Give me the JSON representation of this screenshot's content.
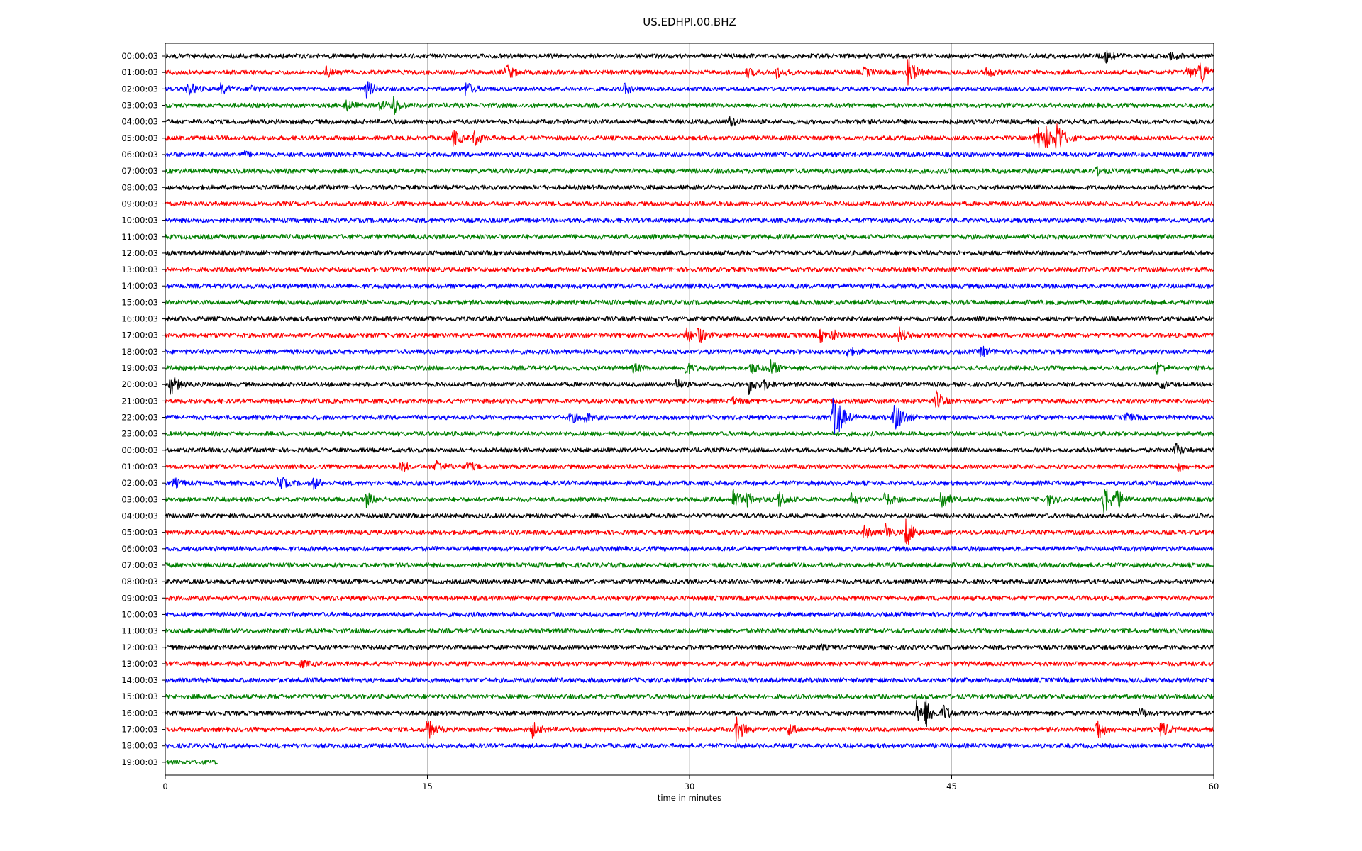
{
  "chart_data": {
    "type": "line",
    "title": "US.EDHPI.00.BHZ",
    "xlabel": "time in minutes",
    "ylabel": "",
    "xlim": [
      0,
      60
    ],
    "x_ticks": [
      0,
      15,
      30,
      45,
      60
    ],
    "x_tick_labels": [
      "0",
      "15",
      "30",
      "45",
      "60"
    ],
    "grid": "vertical lines at x ticks",
    "color_cycle": [
      "#000000",
      "#ff0000",
      "#0000ff",
      "#008000"
    ],
    "series": [
      {
        "label": "00:00:03",
        "end_minute": 60,
        "events": [
          {
            "t": 53.8,
            "a": 0.6
          },
          {
            "t": 57.5,
            "a": 0.3
          }
        ]
      },
      {
        "label": "01:00:03",
        "end_minute": 60,
        "events": [
          {
            "t": 9.2,
            "a": 0.5
          },
          {
            "t": 19.5,
            "a": 0.8
          },
          {
            "t": 33.3,
            "a": 0.4
          },
          {
            "t": 35,
            "a": 0.5
          },
          {
            "t": 40,
            "a": 0.4
          },
          {
            "t": 42.5,
            "a": 1.6
          },
          {
            "t": 47,
            "a": 0.4
          },
          {
            "t": 58.5,
            "a": 0.6
          },
          {
            "t": 59.2,
            "a": 1.4
          }
        ]
      },
      {
        "label": "02:00:03",
        "end_minute": 60,
        "events": [
          {
            "t": 1.3,
            "a": 0.7
          },
          {
            "t": 3.2,
            "a": 0.5
          },
          {
            "t": 4.9,
            "a": 0.3
          },
          {
            "t": 11.5,
            "a": 0.8
          },
          {
            "t": 17.2,
            "a": 0.7
          },
          {
            "t": 26.3,
            "a": 0.4
          }
        ]
      },
      {
        "label": "03:00:03",
        "end_minute": 60,
        "events": [
          {
            "t": 10.3,
            "a": 0.5
          },
          {
            "t": 12.3,
            "a": 0.4
          },
          {
            "t": 13,
            "a": 1.1
          }
        ]
      },
      {
        "label": "04:00:03",
        "end_minute": 60,
        "events": [
          {
            "t": 32.3,
            "a": 0.4
          }
        ]
      },
      {
        "label": "05:00:03",
        "end_minute": 60,
        "events": [
          {
            "t": 16.5,
            "a": 0.8
          },
          {
            "t": 17.7,
            "a": 0.7
          },
          {
            "t": 49.8,
            "a": 1.5
          },
          {
            "t": 50.4,
            "a": 1.1
          },
          {
            "t": 51,
            "a": 2.0
          }
        ]
      },
      {
        "label": "06:00:03",
        "end_minute": 60,
        "events": [
          {
            "t": 4.5,
            "a": 0.2
          }
        ]
      },
      {
        "label": "07:00:03",
        "end_minute": 60,
        "events": [
          {
            "t": 53.3,
            "a": 0.3
          }
        ]
      },
      {
        "label": "08:00:03",
        "end_minute": 60,
        "events": []
      },
      {
        "label": "09:00:03",
        "end_minute": 60,
        "events": []
      },
      {
        "label": "10:00:03",
        "end_minute": 60,
        "events": []
      },
      {
        "label": "11:00:03",
        "end_minute": 60,
        "events": []
      },
      {
        "label": "12:00:03",
        "end_minute": 60,
        "events": []
      },
      {
        "label": "13:00:03",
        "end_minute": 60,
        "events": []
      },
      {
        "label": "14:00:03",
        "end_minute": 60,
        "events": []
      },
      {
        "label": "15:00:03",
        "end_minute": 60,
        "events": []
      },
      {
        "label": "16:00:03",
        "end_minute": 60,
        "events": []
      },
      {
        "label": "17:00:03",
        "end_minute": 60,
        "events": [
          {
            "t": 29.8,
            "a": 0.7
          },
          {
            "t": 30.5,
            "a": 0.8
          },
          {
            "t": 37.5,
            "a": 0.6
          },
          {
            "t": 38.2,
            "a": 0.5
          },
          {
            "t": 42,
            "a": 0.7
          }
        ]
      },
      {
        "label": "18:00:03",
        "end_minute": 60,
        "events": [
          {
            "t": 39,
            "a": 0.5
          },
          {
            "t": 46.7,
            "a": 0.5
          }
        ]
      },
      {
        "label": "19:00:03",
        "end_minute": 60,
        "events": [
          {
            "t": 26.8,
            "a": 0.4
          },
          {
            "t": 29.8,
            "a": 0.6
          },
          {
            "t": 33.5,
            "a": 0.5
          },
          {
            "t": 34.6,
            "a": 0.8
          },
          {
            "t": 56.7,
            "a": 0.6
          }
        ]
      },
      {
        "label": "20:00:03",
        "end_minute": 60,
        "events": [
          {
            "t": 0.3,
            "a": 1.1
          },
          {
            "t": 29.2,
            "a": 0.5
          },
          {
            "t": 33.4,
            "a": 0.8
          },
          {
            "t": 34.3,
            "a": 0.4
          },
          {
            "t": 57,
            "a": 0.3
          }
        ]
      },
      {
        "label": "21:00:03",
        "end_minute": 60,
        "events": [
          {
            "t": 32.5,
            "a": 0.3
          },
          {
            "t": 44.1,
            "a": 0.9
          }
        ]
      },
      {
        "label": "22:00:03",
        "end_minute": 60,
        "events": [
          {
            "t": 23.2,
            "a": 0.5
          },
          {
            "t": 24,
            "a": 0.4
          },
          {
            "t": 38.2,
            "a": 2.3
          },
          {
            "t": 38.5,
            "a": 1.8
          },
          {
            "t": 41.7,
            "a": 1.4
          },
          {
            "t": 42,
            "a": 1.0
          },
          {
            "t": 55,
            "a": 0.3
          }
        ]
      },
      {
        "label": "23:00:03",
        "end_minute": 60,
        "events": []
      },
      {
        "label": "00:00:03",
        "end_minute": 60,
        "events": [
          {
            "t": 57.8,
            "a": 0.6
          }
        ]
      },
      {
        "label": "01:00:03",
        "end_minute": 60,
        "events": [
          {
            "t": 13.5,
            "a": 0.5
          },
          {
            "t": 15.5,
            "a": 0.7
          },
          {
            "t": 17.3,
            "a": 0.4
          },
          {
            "t": 58,
            "a": 0.4
          }
        ]
      },
      {
        "label": "02:00:03",
        "end_minute": 60,
        "events": [
          {
            "t": 0.5,
            "a": 0.4
          },
          {
            "t": 6.5,
            "a": 0.8
          },
          {
            "t": 8.5,
            "a": 0.5
          }
        ]
      },
      {
        "label": "03:00:03",
        "end_minute": 60,
        "events": [
          {
            "t": 11.5,
            "a": 0.7
          },
          {
            "t": 32.5,
            "a": 1.1
          },
          {
            "t": 33.3,
            "a": 0.7
          },
          {
            "t": 35.1,
            "a": 0.8
          },
          {
            "t": 39.2,
            "a": 0.6
          },
          {
            "t": 41.2,
            "a": 0.7
          },
          {
            "t": 44.4,
            "a": 1.1
          },
          {
            "t": 50.5,
            "a": 0.5
          },
          {
            "t": 53.7,
            "a": 1.7
          },
          {
            "t": 54.4,
            "a": 1.1
          }
        ]
      },
      {
        "label": "04:00:03",
        "end_minute": 60,
        "events": []
      },
      {
        "label": "05:00:03",
        "end_minute": 60,
        "events": [
          {
            "t": 40,
            "a": 0.6
          },
          {
            "t": 41.2,
            "a": 0.8
          },
          {
            "t": 42.4,
            "a": 1.4
          }
        ]
      },
      {
        "label": "06:00:03",
        "end_minute": 60,
        "events": []
      },
      {
        "label": "07:00:03",
        "end_minute": 60,
        "events": []
      },
      {
        "label": "08:00:03",
        "end_minute": 60,
        "events": []
      },
      {
        "label": "09:00:03",
        "end_minute": 60,
        "events": []
      },
      {
        "label": "10:00:03",
        "end_minute": 60,
        "events": []
      },
      {
        "label": "11:00:03",
        "end_minute": 60,
        "events": []
      },
      {
        "label": "12:00:03",
        "end_minute": 60,
        "events": [
          {
            "t": 37.5,
            "a": 0.2
          }
        ]
      },
      {
        "label": "13:00:03",
        "end_minute": 60,
        "events": [
          {
            "t": 7.8,
            "a": 0.3
          }
        ]
      },
      {
        "label": "14:00:03",
        "end_minute": 60,
        "events": []
      },
      {
        "label": "15:00:03",
        "end_minute": 60,
        "events": []
      },
      {
        "label": "16:00:03",
        "end_minute": 60,
        "events": [
          {
            "t": 43,
            "a": 1.1
          },
          {
            "t": 43.5,
            "a": 1.5
          },
          {
            "t": 44.5,
            "a": 0.8
          },
          {
            "t": 55.8,
            "a": 0.4
          }
        ]
      },
      {
        "label": "17:00:03",
        "end_minute": 60,
        "events": [
          {
            "t": 15,
            "a": 1.0
          },
          {
            "t": 21,
            "a": 0.7
          },
          {
            "t": 32.7,
            "a": 1.3
          },
          {
            "t": 35.7,
            "a": 0.6
          },
          {
            "t": 53.3,
            "a": 1.3
          },
          {
            "t": 57,
            "a": 0.8
          }
        ]
      },
      {
        "label": "18:00:03",
        "end_minute": 60,
        "events": []
      },
      {
        "label": "19:00:03",
        "end_minute": 3.0,
        "events": []
      }
    ]
  }
}
